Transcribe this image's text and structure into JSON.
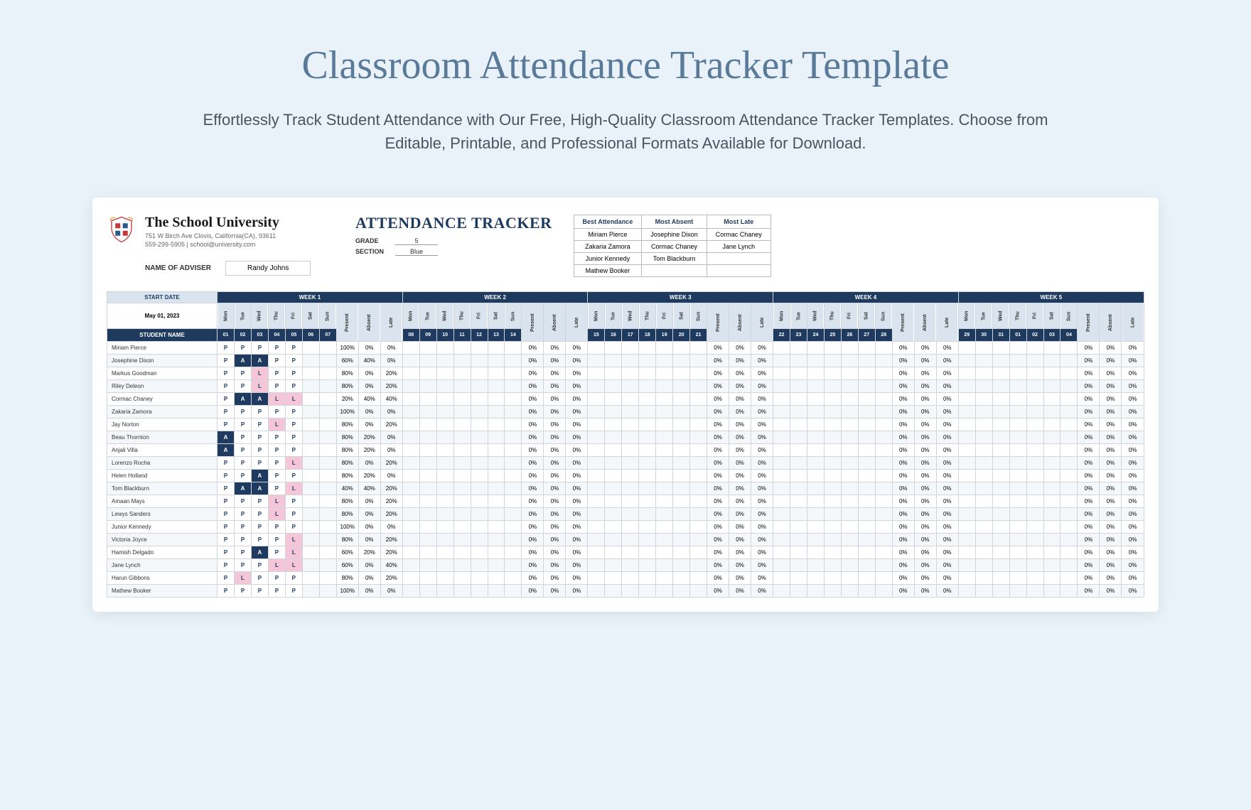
{
  "title": "Classroom Attendance Tracker Template",
  "subtitle": "Effortlessly Track Student Attendance with Our Free, High-Quality Classroom Attendance Tracker Templates. Choose from Editable, Printable, and Professional Formats Available for Download.",
  "school": {
    "name": "The School University",
    "addr1": "751 W Birch Ave Clovis, California(CA), 93611",
    "addr2": "559-299-5905 | school@university.com"
  },
  "tracker_title": "ATTENDANCE TRACKER",
  "grade_label": "GRADE",
  "grade_value": "5",
  "section_label": "SECTION",
  "section_value": "Blue",
  "awards": {
    "headers": [
      "Best Attendance",
      "Most Absent",
      "Most Late"
    ],
    "rows": [
      [
        "Miriam Pierce",
        "Josephine Dixon",
        "Cormac Chaney"
      ],
      [
        "Zakaria Zamora",
        "Cormac Chaney",
        "Jane Lynch"
      ],
      [
        "Junior Kennedy",
        "Tom Blackburn",
        ""
      ],
      [
        "Mathew Booker",
        "",
        ""
      ]
    ]
  },
  "adviser_label": "NAME OF ADVISER",
  "adviser_value": "Randy Johns",
  "start_label": "START DATE",
  "start_value": "May 01, 2023",
  "student_header": "STUDENT NAME",
  "weeks": [
    "WEEK 1",
    "WEEK 2",
    "WEEK 3",
    "WEEK 4",
    "WEEK 5"
  ],
  "days": [
    "Mon",
    "Tue",
    "Wed",
    "Thu",
    "Fri",
    "Sat",
    "Sun"
  ],
  "stats": [
    "Present",
    "Absent",
    "Late"
  ],
  "daynums": [
    [
      "01",
      "02",
      "03",
      "04",
      "05",
      "06",
      "07"
    ],
    [
      "08",
      "09",
      "10",
      "11",
      "12",
      "13",
      "14"
    ],
    [
      "15",
      "16",
      "17",
      "18",
      "19",
      "20",
      "21"
    ],
    [
      "22",
      "23",
      "24",
      "25",
      "26",
      "27",
      "28"
    ],
    [
      "29",
      "30",
      "31",
      "01",
      "02",
      "03",
      "04"
    ]
  ],
  "colors": {
    "page_bg": "#e9f1f9",
    "title": "#5a7a9a",
    "dark": "#1e3a5f",
    "light_hdr": "#d9e4ee",
    "absent_bg": "#1e3a5f",
    "late_bg": "#f4c6d8",
    "alt_row": "#f5f8fb"
  },
  "students": [
    {
      "name": "Miriam Pierce",
      "w1": [
        "P",
        "P",
        "P",
        "P",
        "P",
        "",
        ""
      ],
      "s1": [
        "100%",
        "0%",
        "0%"
      ]
    },
    {
      "name": "Josephine Dixon",
      "w1": [
        "P",
        "A",
        "A",
        "P",
        "P",
        "",
        ""
      ],
      "s1": [
        "60%",
        "40%",
        "0%"
      ]
    },
    {
      "name": "Markus Goodman",
      "w1": [
        "P",
        "P",
        "L",
        "P",
        "P",
        "",
        ""
      ],
      "s1": [
        "80%",
        "0%",
        "20%"
      ]
    },
    {
      "name": "Riley Deleon",
      "w1": [
        "P",
        "P",
        "L",
        "P",
        "P",
        "",
        ""
      ],
      "s1": [
        "80%",
        "0%",
        "20%"
      ]
    },
    {
      "name": "Cormac Chaney",
      "w1": [
        "P",
        "A",
        "A",
        "L",
        "L",
        "",
        ""
      ],
      "s1": [
        "20%",
        "40%",
        "40%"
      ]
    },
    {
      "name": "Zakaria Zamora",
      "w1": [
        "P",
        "P",
        "P",
        "P",
        "P",
        "",
        ""
      ],
      "s1": [
        "100%",
        "0%",
        "0%"
      ]
    },
    {
      "name": "Jay Norton",
      "w1": [
        "P",
        "P",
        "P",
        "L",
        "P",
        "",
        ""
      ],
      "s1": [
        "80%",
        "0%",
        "20%"
      ]
    },
    {
      "name": "Beau Thornton",
      "w1": [
        "A",
        "P",
        "P",
        "P",
        "P",
        "",
        ""
      ],
      "s1": [
        "80%",
        "20%",
        "0%"
      ]
    },
    {
      "name": "Anjali Villa",
      "w1": [
        "A",
        "P",
        "P",
        "P",
        "P",
        "",
        ""
      ],
      "s1": [
        "80%",
        "20%",
        "0%"
      ]
    },
    {
      "name": "Lorenzo Rocha",
      "w1": [
        "P",
        "P",
        "P",
        "P",
        "L",
        "",
        ""
      ],
      "s1": [
        "80%",
        "0%",
        "20%"
      ]
    },
    {
      "name": "Helen Holland",
      "w1": [
        "P",
        "P",
        "A",
        "P",
        "P",
        "",
        ""
      ],
      "s1": [
        "80%",
        "20%",
        "0%"
      ]
    },
    {
      "name": "Tom Blackburn",
      "w1": [
        "P",
        "A",
        "A",
        "P",
        "L",
        "",
        ""
      ],
      "s1": [
        "40%",
        "40%",
        "20%"
      ]
    },
    {
      "name": "Amaan Mays",
      "w1": [
        "P",
        "P",
        "P",
        "L",
        "P",
        "",
        ""
      ],
      "s1": [
        "80%",
        "0%",
        "20%"
      ]
    },
    {
      "name": "Lewys Sanders",
      "w1": [
        "P",
        "P",
        "P",
        "L",
        "P",
        "",
        ""
      ],
      "s1": [
        "80%",
        "0%",
        "20%"
      ]
    },
    {
      "name": "Junior Kennedy",
      "w1": [
        "P",
        "P",
        "P",
        "P",
        "P",
        "",
        ""
      ],
      "s1": [
        "100%",
        "0%",
        "0%"
      ]
    },
    {
      "name": "Victoria Joyce",
      "w1": [
        "P",
        "P",
        "P",
        "P",
        "L",
        "",
        ""
      ],
      "s1": [
        "80%",
        "0%",
        "20%"
      ]
    },
    {
      "name": "Hamish Delgado",
      "w1": [
        "P",
        "P",
        "A",
        "P",
        "L",
        "",
        ""
      ],
      "s1": [
        "60%",
        "20%",
        "20%"
      ]
    },
    {
      "name": "Jane Lynch",
      "w1": [
        "P",
        "P",
        "P",
        "L",
        "L",
        "",
        ""
      ],
      "s1": [
        "60%",
        "0%",
        "40%"
      ]
    },
    {
      "name": "Harun Gibbons",
      "w1": [
        "P",
        "L",
        "P",
        "P",
        "P",
        "",
        ""
      ],
      "s1": [
        "80%",
        "0%",
        "20%"
      ]
    },
    {
      "name": "Mathew Booker",
      "w1": [
        "P",
        "P",
        "P",
        "P",
        "P",
        "",
        ""
      ],
      "s1": [
        "100%",
        "0%",
        "0%"
      ]
    }
  ],
  "empty_stat": [
    "0%",
    "0%",
    "0%"
  ]
}
